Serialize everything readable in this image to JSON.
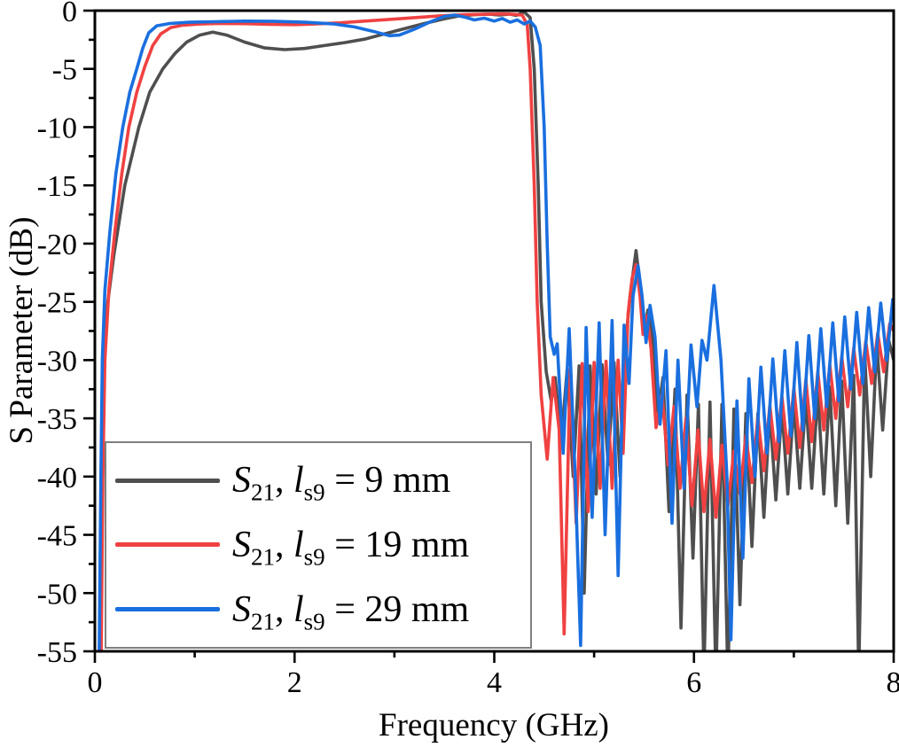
{
  "chart_data": {
    "type": "line",
    "title": "",
    "xlabel": "Frequency (GHz)",
    "ylabel": "S Parameter (dB)",
    "xlim": [
      0,
      8
    ],
    "ylim": [
      -55,
      0
    ],
    "xticks": [
      0,
      2,
      4,
      6,
      8
    ],
    "xminorticks": [
      1,
      3,
      5,
      7
    ],
    "yticks": [
      0,
      -5,
      -10,
      -15,
      -20,
      -25,
      -30,
      -35,
      -40,
      -45,
      -50,
      -55
    ],
    "yminorticks": [
      -2.5,
      -7.5,
      -12.5,
      -17.5,
      -22.5,
      -27.5,
      -32.5,
      -37.5,
      -42.5,
      -47.5,
      -52.5
    ],
    "grid": false,
    "legend_position": "lower-left",
    "series": [
      {
        "name": "S21, ls9 = 9 mm",
        "color": "#4f4f4f",
        "points": [
          [
            0.05,
            -58
          ],
          [
            0.07,
            -40
          ],
          [
            0.09,
            -30
          ],
          [
            0.13,
            -25
          ],
          [
            0.19,
            -21
          ],
          [
            0.3,
            -15
          ],
          [
            0.44,
            -10
          ],
          [
            0.55,
            -7
          ],
          [
            0.68,
            -5
          ],
          [
            0.8,
            -3.7
          ],
          [
            0.92,
            -2.7
          ],
          [
            1.05,
            -2.1
          ],
          [
            1.18,
            -1.85
          ],
          [
            1.32,
            -2.1
          ],
          [
            1.5,
            -2.7
          ],
          [
            1.7,
            -3.2
          ],
          [
            1.9,
            -3.35
          ],
          [
            2.1,
            -3.25
          ],
          [
            2.3,
            -3.0
          ],
          [
            2.5,
            -2.75
          ],
          [
            2.7,
            -2.45
          ],
          [
            2.9,
            -2.0
          ],
          [
            3.1,
            -1.55
          ],
          [
            3.3,
            -1.1
          ],
          [
            3.5,
            -0.7
          ],
          [
            3.65,
            -0.45
          ],
          [
            3.8,
            -0.35
          ],
          [
            3.95,
            -0.3
          ],
          [
            4.05,
            -0.38
          ],
          [
            4.15,
            -0.3
          ],
          [
            4.22,
            -0.4
          ],
          [
            4.3,
            -0.12
          ],
          [
            4.36,
            -0.6
          ],
          [
            4.4,
            -5
          ],
          [
            4.44,
            -15
          ],
          [
            4.47,
            -25
          ],
          [
            4.52,
            -31
          ],
          [
            4.57,
            -33.5
          ],
          [
            4.61,
            -31.5
          ],
          [
            4.67,
            -37
          ],
          [
            4.73,
            -30.8
          ],
          [
            4.79,
            -40
          ],
          [
            4.85,
            -30.5
          ],
          [
            4.9,
            -50
          ],
          [
            4.96,
            -30.5
          ],
          [
            5.02,
            -41.5
          ],
          [
            5.08,
            -30.4
          ],
          [
            5.14,
            -39
          ],
          [
            5.2,
            -30.2
          ],
          [
            5.26,
            -40
          ],
          [
            5.31,
            -29
          ],
          [
            5.36,
            -24.5
          ],
          [
            5.42,
            -20.6
          ],
          [
            5.46,
            -23.5
          ],
          [
            5.5,
            -27.5
          ],
          [
            5.54,
            -25.7
          ],
          [
            5.58,
            -27.5
          ],
          [
            5.64,
            -34.5
          ],
          [
            5.69,
            -31.5
          ],
          [
            5.75,
            -43
          ],
          [
            5.81,
            -32.5
          ],
          [
            5.87,
            -53
          ],
          [
            5.93,
            -33
          ],
          [
            5.99,
            -47
          ],
          [
            6.045,
            -33.8
          ],
          [
            6.1,
            -57
          ],
          [
            6.16,
            -33.6
          ],
          [
            6.22,
            -57.5
          ],
          [
            6.28,
            -33.8
          ],
          [
            6.34,
            -57.5
          ],
          [
            6.4,
            -34.2
          ],
          [
            6.46,
            -51
          ],
          [
            6.52,
            -34.6
          ],
          [
            6.58,
            -46
          ],
          [
            6.64,
            -34.6
          ],
          [
            6.7,
            -43.5
          ],
          [
            6.76,
            -34.4
          ],
          [
            6.82,
            -42
          ],
          [
            6.88,
            -34.1
          ],
          [
            6.94,
            -41.5
          ],
          [
            7.0,
            -33.7
          ],
          [
            7.06,
            -41
          ],
          [
            7.12,
            -33.3
          ],
          [
            7.18,
            -41
          ],
          [
            7.24,
            -32.8
          ],
          [
            7.3,
            -41.5
          ],
          [
            7.36,
            -32.3
          ],
          [
            7.42,
            -42.5
          ],
          [
            7.48,
            -31.8
          ],
          [
            7.54,
            -44
          ],
          [
            7.6,
            -31.3
          ],
          [
            7.65,
            -57
          ],
          [
            7.71,
            -29.5
          ],
          [
            7.77,
            -40
          ],
          [
            7.83,
            -28.5
          ],
          [
            7.89,
            -36
          ],
          [
            7.95,
            -28.3
          ],
          [
            8.0,
            -30
          ]
        ]
      },
      {
        "name": "S21, ls9 = 19 mm",
        "color": "#f04141",
        "points": [
          [
            0.06,
            -58
          ],
          [
            0.08,
            -40
          ],
          [
            0.1,
            -30
          ],
          [
            0.14,
            -24
          ],
          [
            0.2,
            -19
          ],
          [
            0.27,
            -14
          ],
          [
            0.34,
            -10
          ],
          [
            0.42,
            -7
          ],
          [
            0.5,
            -4.8
          ],
          [
            0.58,
            -3
          ],
          [
            0.66,
            -2
          ],
          [
            0.76,
            -1.45
          ],
          [
            0.88,
            -1.25
          ],
          [
            1.05,
            -1.15
          ],
          [
            1.25,
            -1.1
          ],
          [
            1.5,
            -1.12
          ],
          [
            1.75,
            -1.17
          ],
          [
            2.0,
            -1.2
          ],
          [
            2.2,
            -1.15
          ],
          [
            2.45,
            -1.05
          ],
          [
            2.7,
            -0.9
          ],
          [
            2.95,
            -0.75
          ],
          [
            3.2,
            -0.6
          ],
          [
            3.45,
            -0.45
          ],
          [
            3.7,
            -0.35
          ],
          [
            3.95,
            -0.3
          ],
          [
            4.1,
            -0.28
          ],
          [
            4.2,
            -0.32
          ],
          [
            4.28,
            -0.38
          ],
          [
            4.33,
            -1.2
          ],
          [
            4.36,
            -5
          ],
          [
            4.4,
            -15
          ],
          [
            4.43,
            -25
          ],
          [
            4.47,
            -33
          ],
          [
            4.53,
            -38.5
          ],
          [
            4.59,
            -31.5
          ],
          [
            4.65,
            -36
          ],
          [
            4.7,
            -53.5
          ],
          [
            4.76,
            -30.8
          ],
          [
            4.82,
            -44
          ],
          [
            4.88,
            -30.3
          ],
          [
            4.94,
            -43
          ],
          [
            5.0,
            -30.2
          ],
          [
            5.06,
            -41
          ],
          [
            5.12,
            -30.1
          ],
          [
            5.18,
            -41
          ],
          [
            5.24,
            -30
          ],
          [
            5.29,
            -38
          ],
          [
            5.34,
            -26
          ],
          [
            5.38,
            -23
          ],
          [
            5.42,
            -21.8
          ],
          [
            5.46,
            -24.5
          ],
          [
            5.49,
            -27.8
          ],
          [
            5.53,
            -26.2
          ],
          [
            5.57,
            -29
          ],
          [
            5.62,
            -35.8
          ],
          [
            5.68,
            -33
          ],
          [
            5.74,
            -39
          ],
          [
            5.8,
            -34
          ],
          [
            5.86,
            -41
          ],
          [
            5.92,
            -35
          ],
          [
            5.98,
            -42.5
          ],
          [
            6.04,
            -36
          ],
          [
            6.1,
            -43
          ],
          [
            6.16,
            -36.8
          ],
          [
            6.22,
            -43.5
          ],
          [
            6.28,
            -37.3
          ],
          [
            6.34,
            -42.5
          ],
          [
            6.4,
            -37.8
          ],
          [
            6.46,
            -41.5
          ],
          [
            6.52,
            -36.5
          ],
          [
            6.58,
            -40.5
          ],
          [
            6.64,
            -34.9
          ],
          [
            6.7,
            -39.5
          ],
          [
            6.76,
            -33.9
          ],
          [
            6.82,
            -38.5
          ],
          [
            6.88,
            -33.1
          ],
          [
            6.94,
            -38
          ],
          [
            7.0,
            -32.4
          ],
          [
            7.06,
            -37.5
          ],
          [
            7.12,
            -31.7
          ],
          [
            7.18,
            -37
          ],
          [
            7.24,
            -31
          ],
          [
            7.3,
            -36
          ],
          [
            7.36,
            -30.4
          ],
          [
            7.42,
            -35
          ],
          [
            7.48,
            -29.7
          ],
          [
            7.54,
            -34
          ],
          [
            7.6,
            -29
          ],
          [
            7.66,
            -33
          ],
          [
            7.72,
            -28.4
          ],
          [
            7.78,
            -32
          ],
          [
            7.84,
            -27.7
          ],
          [
            7.9,
            -31
          ],
          [
            7.96,
            -26.9
          ],
          [
            8.0,
            -27.5
          ]
        ]
      },
      {
        "name": "S21, ls9 = 29 mm",
        "color": "#1a6fdf",
        "points": [
          [
            0.04,
            -58
          ],
          [
            0.06,
            -40
          ],
          [
            0.075,
            -30
          ],
          [
            0.1,
            -24
          ],
          [
            0.15,
            -19
          ],
          [
            0.21,
            -14
          ],
          [
            0.28,
            -10
          ],
          [
            0.35,
            -7
          ],
          [
            0.42,
            -5
          ],
          [
            0.48,
            -3.2
          ],
          [
            0.54,
            -1.9
          ],
          [
            0.62,
            -1.3
          ],
          [
            0.75,
            -1.1
          ],
          [
            0.95,
            -1.0
          ],
          [
            1.2,
            -0.95
          ],
          [
            1.5,
            -0.9
          ],
          [
            1.8,
            -0.92
          ],
          [
            2.1,
            -1.0
          ],
          [
            2.4,
            -1.15
          ],
          [
            2.6,
            -1.4
          ],
          [
            2.8,
            -1.8
          ],
          [
            2.95,
            -2.15
          ],
          [
            3.05,
            -2.1
          ],
          [
            3.2,
            -1.6
          ],
          [
            3.35,
            -1.0
          ],
          [
            3.5,
            -0.5
          ],
          [
            3.6,
            -0.38
          ],
          [
            3.7,
            -0.55
          ],
          [
            3.8,
            -0.8
          ],
          [
            3.9,
            -0.65
          ],
          [
            4.0,
            -0.9
          ],
          [
            4.08,
            -0.68
          ],
          [
            4.16,
            -1.0
          ],
          [
            4.23,
            -0.8
          ],
          [
            4.3,
            -1.15
          ],
          [
            4.36,
            -0.9
          ],
          [
            4.41,
            -1.4
          ],
          [
            4.46,
            -3
          ],
          [
            4.5,
            -10
          ],
          [
            4.53,
            -20
          ],
          [
            4.56,
            -28
          ],
          [
            4.6,
            -29.5
          ],
          [
            4.63,
            -28.6
          ],
          [
            4.69,
            -38
          ],
          [
            4.75,
            -27.3
          ],
          [
            4.81,
            -40
          ],
          [
            4.865,
            -54.5
          ],
          [
            4.92,
            -27.2
          ],
          [
            4.98,
            -43.5
          ],
          [
            5.05,
            -26.8
          ],
          [
            5.11,
            -45
          ],
          [
            5.18,
            -26.6
          ],
          [
            5.24,
            -48.5
          ],
          [
            5.3,
            -27
          ],
          [
            5.35,
            -32
          ],
          [
            5.39,
            -24.5
          ],
          [
            5.44,
            -21.9
          ],
          [
            5.48,
            -24.5
          ],
          [
            5.52,
            -28.5
          ],
          [
            5.56,
            -25.3
          ],
          [
            5.61,
            -28
          ],
          [
            5.66,
            -35.5
          ],
          [
            5.72,
            -29.2
          ],
          [
            5.78,
            -44
          ],
          [
            5.84,
            -30
          ],
          [
            5.9,
            -41
          ],
          [
            5.97,
            -28.7
          ],
          [
            6.03,
            -34
          ],
          [
            6.08,
            -28.3
          ],
          [
            6.13,
            -30
          ],
          [
            6.2,
            -23.6
          ],
          [
            6.27,
            -30
          ],
          [
            6.33,
            -40
          ],
          [
            6.37,
            -54
          ],
          [
            6.43,
            -33.5
          ],
          [
            6.49,
            -47
          ],
          [
            6.55,
            -31.6
          ],
          [
            6.61,
            -40
          ],
          [
            6.67,
            -30.6
          ],
          [
            6.73,
            -38
          ],
          [
            6.79,
            -29.9
          ],
          [
            6.85,
            -37
          ],
          [
            6.91,
            -29.2
          ],
          [
            6.97,
            -36.5
          ],
          [
            7.03,
            -28.5
          ],
          [
            7.09,
            -36
          ],
          [
            7.15,
            -27.9
          ],
          [
            7.21,
            -35
          ],
          [
            7.27,
            -27.3
          ],
          [
            7.33,
            -34
          ],
          [
            7.39,
            -26.8
          ],
          [
            7.45,
            -33.5
          ],
          [
            7.51,
            -26.3
          ],
          [
            7.57,
            -32.5
          ],
          [
            7.63,
            -25.9
          ],
          [
            7.69,
            -32
          ],
          [
            7.75,
            -25.5
          ],
          [
            7.81,
            -31
          ],
          [
            7.87,
            -25.1
          ],
          [
            7.93,
            -30
          ],
          [
            7.99,
            -24.8
          ],
          [
            8.0,
            -25.5
          ]
        ]
      }
    ]
  },
  "axes": {
    "x_label": "Frequency (GHz)",
    "y_label": "S Parameter (dB)",
    "x_tick_labels": [
      "0",
      "2",
      "4",
      "6",
      "8"
    ],
    "y_tick_labels": [
      "0",
      "-5",
      "-10",
      "-15",
      "-20",
      "-25",
      "-30",
      "-35",
      "-40",
      "-45",
      "-50",
      "-55"
    ]
  },
  "legend": {
    "entries": [
      {
        "s": "S",
        "s_sub": "21",
        "sep": ", ",
        "l": "l",
        "l_sub": "s9",
        "rest": " = 9 mm",
        "color": "#4f4f4f"
      },
      {
        "s": "S",
        "s_sub": "21",
        "sep": ", ",
        "l": "l",
        "l_sub": "s9",
        "rest": " = 19 mm",
        "color": "#f04141"
      },
      {
        "s": "S",
        "s_sub": "21",
        "sep": ", ",
        "l": "l",
        "l_sub": "s9",
        "rest": " = 29 mm",
        "color": "#1a6fdf"
      }
    ]
  },
  "colors": {
    "axis": "#000000",
    "background": "#ffffff",
    "series_black": "#4f4f4f",
    "series_red": "#f04141",
    "series_blue": "#1a6fdf"
  }
}
